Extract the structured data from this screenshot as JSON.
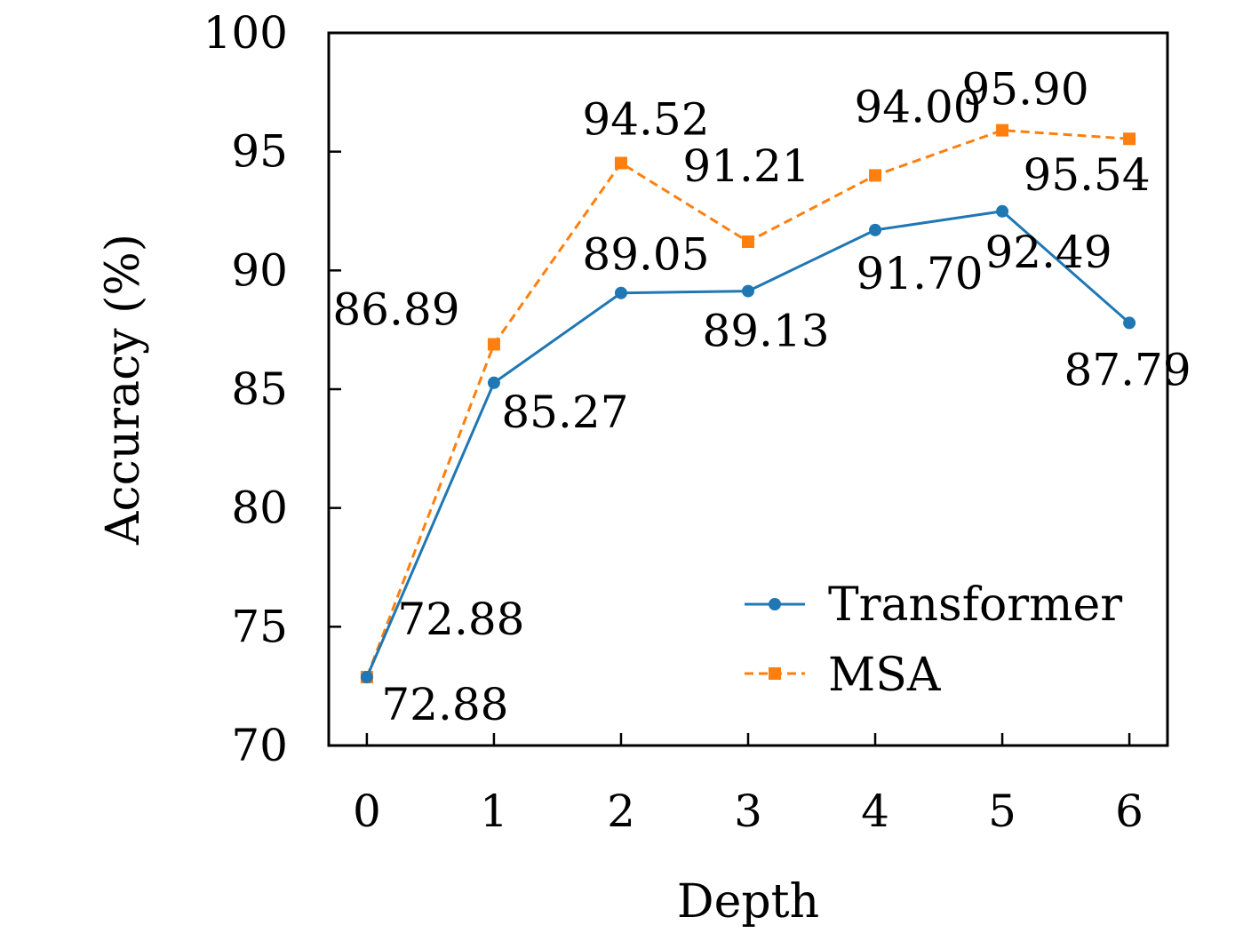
{
  "chart_data": {
    "type": "line",
    "xlabel": "Depth",
    "ylabel": "Accuracy (%)",
    "x": [
      0,
      1,
      2,
      3,
      4,
      5,
      6
    ],
    "xlim": [
      -0.3,
      6.3
    ],
    "ylim": [
      70,
      100
    ],
    "xticks": [
      "0",
      "1",
      "2",
      "3",
      "4",
      "5",
      "6"
    ],
    "yticks": [
      "70",
      "75",
      "80",
      "85",
      "90",
      "95",
      "100"
    ],
    "grid": false,
    "legend_position": "lower-right",
    "series": [
      {
        "name": "Transformer",
        "values": [
          72.88,
          85.27,
          89.05,
          89.13,
          91.7,
          92.49,
          87.79
        ],
        "labels": [
          "72.88",
          "85.27",
          "89.05",
          "89.13",
          "91.70",
          "92.49",
          "87.79"
        ],
        "color": "#1f77b4",
        "marker": "circle",
        "linestyle": "solid"
      },
      {
        "name": "MSA",
        "values": [
          72.88,
          86.89,
          94.52,
          91.21,
          94.0,
          95.9,
          95.54
        ],
        "labels": [
          "72.88",
          "86.89",
          "94.52",
          "91.21",
          "94.00",
          "95.90",
          "95.54"
        ],
        "color": "#ff7f0e",
        "marker": "square",
        "linestyle": "dashed"
      }
    ]
  }
}
